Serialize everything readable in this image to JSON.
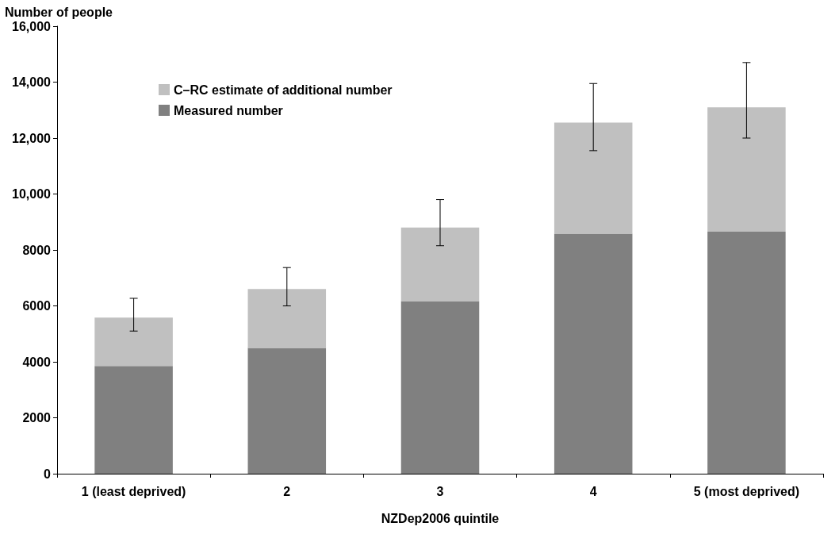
{
  "chart_data": {
    "type": "bar",
    "stacked": true,
    "xlabel": "NZDep2006 quintile",
    "ylabel": "Number of people",
    "categories": [
      "1 (least deprived)",
      "2",
      "3",
      "4",
      "5 (most deprived)"
    ],
    "series": [
      {
        "name": "Measured number",
        "color": "#808080",
        "values": [
          3850,
          4500,
          6170,
          8580,
          8650
        ]
      },
      {
        "name": "C–RC estimate of additional number",
        "color": "#c0c0c0",
        "values": [
          1730,
          2100,
          2630,
          3970,
          4450
        ],
        "errors": [
          [
            5100,
            6270
          ],
          [
            6000,
            7370
          ],
          [
            8150,
            9800
          ],
          [
            11550,
            13950
          ],
          [
            12000,
            14700
          ]
        ]
      }
    ],
    "ylim": [
      0,
      16000
    ],
    "yticks": [
      0,
      2000,
      4000,
      6000,
      8000,
      {
        "value": 10000,
        "label": "10,000"
      },
      {
        "value": 12000,
        "label": "12,000"
      },
      {
        "value": 14000,
        "label": "14,000"
      },
      {
        "value": 16000,
        "label": "16,000"
      }
    ],
    "grid": false,
    "legend": "top left"
  }
}
